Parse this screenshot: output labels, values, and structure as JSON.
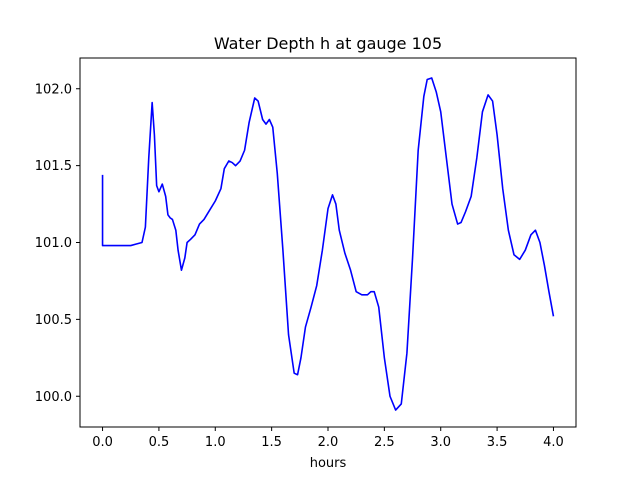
{
  "chart_data": {
    "type": "line",
    "title": "Water Depth h at gauge 105",
    "xlabel": "hours",
    "ylabel": "",
    "xlim": [
      -0.2,
      4.2
    ],
    "ylim": [
      99.8,
      102.2
    ],
    "xticks": [
      0.0,
      0.5,
      1.0,
      1.5,
      2.0,
      2.5,
      3.0,
      3.5,
      4.0
    ],
    "xtick_labels": [
      "0.0",
      "0.5",
      "1.0",
      "1.5",
      "2.0",
      "2.5",
      "3.0",
      "3.5",
      "4.0"
    ],
    "yticks": [
      100.0,
      100.5,
      101.0,
      101.5,
      102.0
    ],
    "ytick_labels": [
      "100.0",
      "100.5",
      "101.0",
      "101.5",
      "102.0"
    ],
    "grid": false,
    "legend": "none",
    "series": [
      {
        "color": "#0000ff",
        "x": [
          0.0,
          0.0,
          0.05,
          0.15,
          0.25,
          0.3,
          0.35,
          0.38,
          0.41,
          0.44,
          0.46,
          0.48,
          0.5,
          0.53,
          0.56,
          0.58,
          0.6,
          0.62,
          0.65,
          0.67,
          0.7,
          0.73,
          0.75,
          0.78,
          0.82,
          0.86,
          0.9,
          0.95,
          1.0,
          1.05,
          1.08,
          1.12,
          1.15,
          1.18,
          1.22,
          1.26,
          1.3,
          1.35,
          1.38,
          1.42,
          1.45,
          1.48,
          1.51,
          1.55,
          1.6,
          1.65,
          1.7,
          1.73,
          1.76,
          1.8,
          1.85,
          1.9,
          1.95,
          2.0,
          2.04,
          2.07,
          2.1,
          2.15,
          2.2,
          2.25,
          2.3,
          2.35,
          2.38,
          2.41,
          2.45,
          2.5,
          2.55,
          2.6,
          2.65,
          2.7,
          2.75,
          2.8,
          2.85,
          2.88,
          2.92,
          2.96,
          3.0,
          3.05,
          3.1,
          3.15,
          3.18,
          3.22,
          3.27,
          3.32,
          3.37,
          3.42,
          3.46,
          3.5,
          3.55,
          3.6,
          3.65,
          3.7,
          3.75,
          3.8,
          3.84,
          3.88,
          3.92,
          3.96,
          4.0
        ],
        "y": [
          101.44,
          100.98,
          100.98,
          100.98,
          100.98,
          100.99,
          101.0,
          101.1,
          101.55,
          101.91,
          101.7,
          101.37,
          101.33,
          101.38,
          101.3,
          101.18,
          101.16,
          101.15,
          101.08,
          100.95,
          100.82,
          100.9,
          101.0,
          101.02,
          101.05,
          101.12,
          101.15,
          101.21,
          101.27,
          101.35,
          101.48,
          101.53,
          101.52,
          101.5,
          101.53,
          101.6,
          101.78,
          101.94,
          101.92,
          101.8,
          101.77,
          101.8,
          101.75,
          101.45,
          100.95,
          100.4,
          100.15,
          100.14,
          100.25,
          100.45,
          100.58,
          100.72,
          100.95,
          101.22,
          101.31,
          101.25,
          101.08,
          100.93,
          100.82,
          100.68,
          100.66,
          100.66,
          100.68,
          100.68,
          100.58,
          100.25,
          100.0,
          99.91,
          99.95,
          100.28,
          100.9,
          101.6,
          101.95,
          102.06,
          102.07,
          101.98,
          101.85,
          101.55,
          101.25,
          101.12,
          101.13,
          101.2,
          101.3,
          101.55,
          101.85,
          101.96,
          101.92,
          101.7,
          101.35,
          101.08,
          100.92,
          100.89,
          100.95,
          101.05,
          101.08,
          101.0,
          100.85,
          100.68,
          100.52
        ]
      }
    ]
  }
}
